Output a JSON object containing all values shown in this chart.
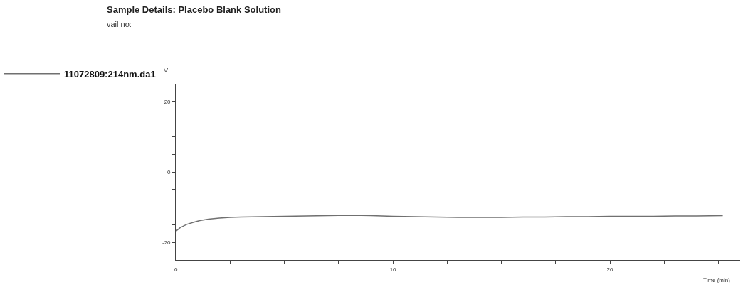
{
  "chart_data": {
    "type": "line",
    "title": "Sample Details: Placebo Blank Solution",
    "subtitle": "vail no:",
    "xlabel": "Time (min)",
    "ylabel": "V",
    "x": [
      0,
      0.2,
      0.5,
      0.8,
      1.1,
      1.5,
      2,
      2.5,
      3,
      4,
      5,
      6,
      7,
      8,
      9,
      10,
      11,
      12,
      13,
      14,
      15,
      16,
      17,
      18,
      19,
      20,
      21,
      22,
      23,
      24,
      25.2
    ],
    "series": [
      {
        "name": "11072809:214nm.da1",
        "color": "#707070",
        "values": [
          -16.8,
          -15.8,
          -14.9,
          -14.3,
          -13.8,
          -13.4,
          -13.1,
          -12.9,
          -12.8,
          -12.7,
          -12.6,
          -12.5,
          -12.4,
          -12.3,
          -12.4,
          -12.6,
          -12.7,
          -12.8,
          -12.9,
          -12.9,
          -12.9,
          -12.8,
          -12.8,
          -12.7,
          -12.7,
          -12.6,
          -12.6,
          -12.6,
          -12.5,
          -12.5,
          -12.4
        ]
      }
    ],
    "xlim": [
      0,
      26
    ],
    "ylim": [
      -25,
      25
    ],
    "xticks": [
      0,
      {
        "value": 2.5,
        "label": null
      },
      {
        "value": 5,
        "label": null
      },
      {
        "value": 7.5,
        "label": null
      },
      10,
      {
        "value": 12.5,
        "label": null
      },
      {
        "value": 15,
        "label": null
      },
      {
        "value": 17.5,
        "label": null
      },
      20,
      {
        "value": 22.5,
        "label": null
      },
      {
        "value": 25,
        "label": null
      }
    ],
    "yticks": [
      -20,
      {
        "value": -15,
        "label": null
      },
      {
        "value": -10,
        "label": null
      },
      {
        "value": -5,
        "label": null
      },
      0,
      {
        "value": 5,
        "label": null
      },
      {
        "value": 10,
        "label": null
      },
      {
        "value": 15,
        "label": null
      },
      20
    ],
    "legend": "top left",
    "marker": "none",
    "line_style": "solid"
  }
}
